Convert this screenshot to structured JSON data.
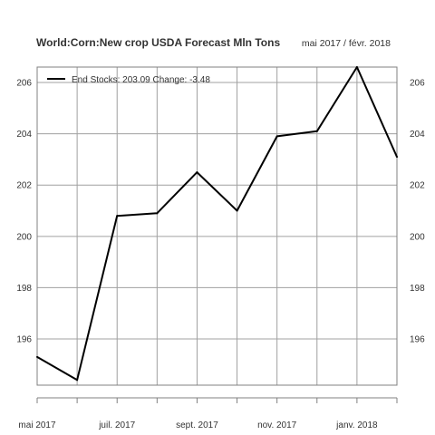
{
  "chart_data": {
    "type": "line",
    "title": "World:Corn:New crop USDA Forecast Mln Tons",
    "subtitle": "mai 2017 / févr. 2018",
    "x": [
      "2017-05",
      "2017-06",
      "2017-07",
      "2017-08",
      "2017-09",
      "2017-10",
      "2017-11",
      "2017-12",
      "2018-01",
      "2018-02"
    ],
    "x_tick_labels": [
      "mai 2017",
      "juil. 2017",
      "sept. 2017",
      "nov. 2017",
      "janv. 2018"
    ],
    "series": [
      {
        "name": "End Stocks: 203.09  Change: -3.48",
        "color": "#000000",
        "values": [
          195.3,
          194.4,
          200.8,
          200.9,
          202.5,
          201.0,
          203.9,
          204.1,
          206.6,
          203.1
        ]
      }
    ],
    "ylim": [
      194.2,
      206.6
    ],
    "y_ticks": [
      196,
      198,
      200,
      202,
      204,
      206
    ],
    "grid": true,
    "legend_position": "top-left",
    "colors": {
      "line": "#000000",
      "grid": "#a0a0a0",
      "axis": "#808080",
      "text": "#333333"
    }
  }
}
